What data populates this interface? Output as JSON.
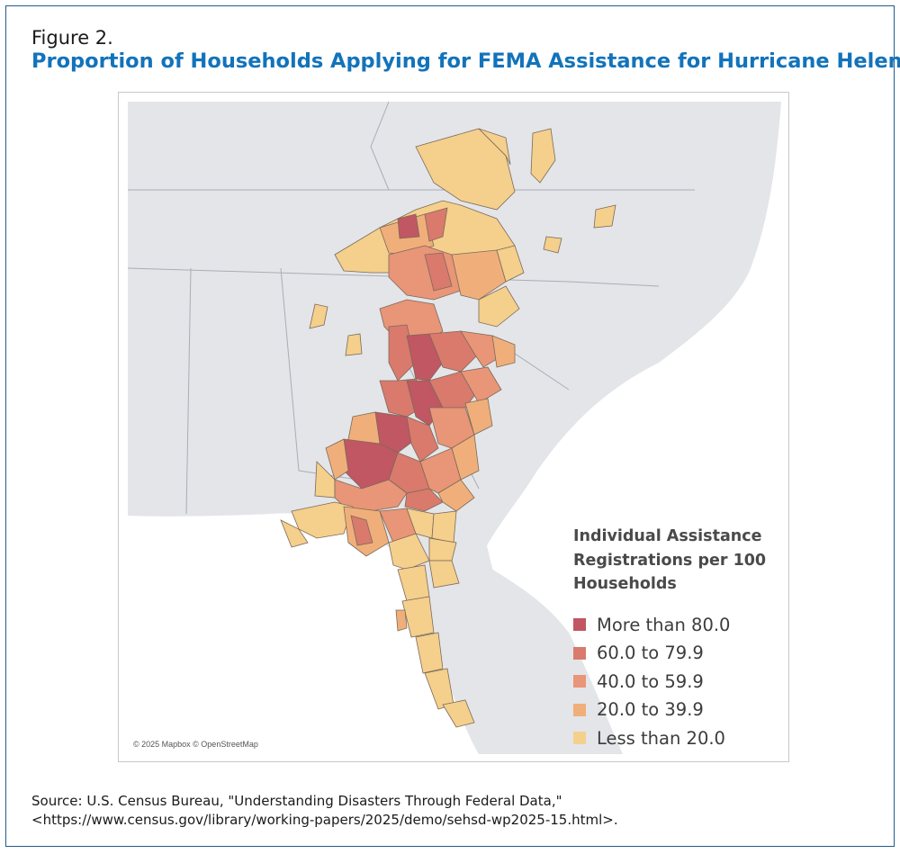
{
  "figure": {
    "label": "Figure 2.",
    "title": "Proportion of Households Applying for FEMA Assistance for Hurricane Helene"
  },
  "map": {
    "attribution": "© 2025 Mapbox © OpenStreetMap",
    "background_color": "#e3e5e9",
    "water_color": "#ffffff",
    "border_color": "#a9adb5"
  },
  "legend": {
    "title_line1": "Individual Assistance",
    "title_line2": "Registrations per 100",
    "title_line3": "Households",
    "items": [
      {
        "label": "More than 80.0",
        "color": "#c05762"
      },
      {
        "label": "60.0 to 79.9",
        "color": "#d97a6c"
      },
      {
        "label": "40.0 to 59.9",
        "color": "#e99577"
      },
      {
        "label": "20.0 to 39.9",
        "color": "#f0af7a"
      },
      {
        "label": "Less than 20.0",
        "color": "#f5cf8c"
      }
    ]
  },
  "source": {
    "line1": "Source: U.S. Census Bureau, \"Understanding Disasters Through Federal Data,\"",
    "line2": "<https://www.census.gov/library/working-papers/2025/demo/sehsd-wp2025-15.html>."
  }
}
